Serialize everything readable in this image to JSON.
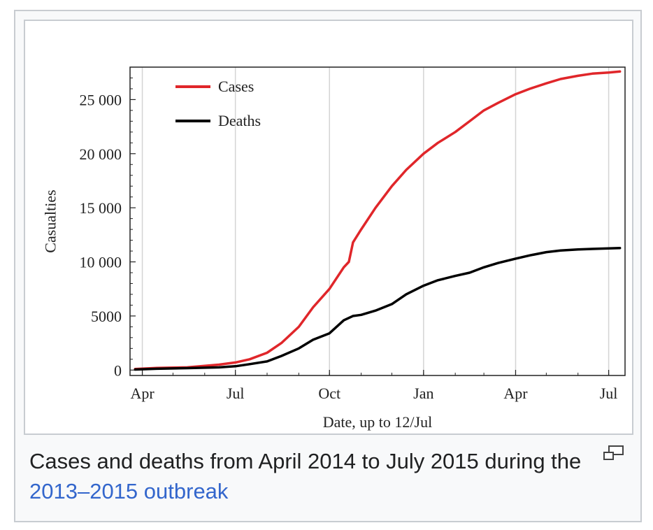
{
  "caption": {
    "text": "Cases and deaths from April 2014 to July 2015 during the ",
    "link": "2013–2015 outbreak"
  },
  "icons": {
    "enlarge": "magnify-clip-icon"
  },
  "chart_data": {
    "type": "line",
    "xlabel": "Date, up to 12/Jul",
    "ylabel": "Casualties",
    "xlim": [
      "2014-03-20",
      "2015-07-17"
    ],
    "ylim": [
      -500,
      28000
    ],
    "x_ticks": [
      {
        "date": "2014-04-01",
        "label": "Apr"
      },
      {
        "date": "2014-07-01",
        "label": "Jul"
      },
      {
        "date": "2014-10-01",
        "label": "Oct"
      },
      {
        "date": "2015-01-01",
        "label": "Jan"
      },
      {
        "date": "2015-04-01",
        "label": "Apr"
      },
      {
        "date": "2015-07-01",
        "label": "Jul"
      }
    ],
    "y_ticks": [
      {
        "value": 0,
        "label": "0"
      },
      {
        "value": 5000,
        "label": "5000"
      },
      {
        "value": 10000,
        "label": "10 000"
      },
      {
        "value": 15000,
        "label": "15 000"
      },
      {
        "value": 20000,
        "label": "20 000"
      },
      {
        "value": 25000,
        "label": "25 000"
      }
    ],
    "grid": "vertical",
    "legend_position": "top-left",
    "series": [
      {
        "name": "Cases",
        "color": "#e0262a",
        "points": [
          [
            "2014-03-25",
            100
          ],
          [
            "2014-04-15",
            200
          ],
          [
            "2014-05-15",
            250
          ],
          [
            "2014-06-15",
            500
          ],
          [
            "2014-07-01",
            700
          ],
          [
            "2014-07-15",
            1000
          ],
          [
            "2014-08-01",
            1600
          ],
          [
            "2014-08-15",
            2500
          ],
          [
            "2014-09-01",
            4000
          ],
          [
            "2014-09-15",
            5800
          ],
          [
            "2014-10-01",
            7500
          ],
          [
            "2014-10-15",
            9500
          ],
          [
            "2014-10-20",
            10000
          ],
          [
            "2014-10-24",
            11800
          ],
          [
            "2014-11-01",
            13000
          ],
          [
            "2014-11-15",
            15000
          ],
          [
            "2014-12-01",
            17000
          ],
          [
            "2014-12-15",
            18500
          ],
          [
            "2015-01-01",
            20000
          ],
          [
            "2015-01-15",
            21000
          ],
          [
            "2015-02-01",
            22000
          ],
          [
            "2015-02-15",
            23000
          ],
          [
            "2015-03-01",
            24000
          ],
          [
            "2015-03-15",
            24700
          ],
          [
            "2015-04-01",
            25500
          ],
          [
            "2015-04-15",
            26000
          ],
          [
            "2015-05-01",
            26500
          ],
          [
            "2015-05-15",
            26900
          ],
          [
            "2015-06-01",
            27200
          ],
          [
            "2015-06-15",
            27400
          ],
          [
            "2015-07-01",
            27500
          ],
          [
            "2015-07-12",
            27600
          ]
        ]
      },
      {
        "name": "Deaths",
        "color": "#000000",
        "points": [
          [
            "2014-03-25",
            50
          ],
          [
            "2014-04-15",
            120
          ],
          [
            "2014-05-15",
            180
          ],
          [
            "2014-06-15",
            250
          ],
          [
            "2014-07-01",
            350
          ],
          [
            "2014-07-15",
            550
          ],
          [
            "2014-08-01",
            800
          ],
          [
            "2014-08-15",
            1300
          ],
          [
            "2014-09-01",
            2000
          ],
          [
            "2014-09-15",
            2800
          ],
          [
            "2014-10-01",
            3400
          ],
          [
            "2014-10-15",
            4600
          ],
          [
            "2014-10-24",
            5000
          ],
          [
            "2014-11-01",
            5100
          ],
          [
            "2014-11-15",
            5500
          ],
          [
            "2014-12-01",
            6100
          ],
          [
            "2014-12-15",
            7000
          ],
          [
            "2015-01-01",
            7800
          ],
          [
            "2015-01-15",
            8300
          ],
          [
            "2015-02-01",
            8700
          ],
          [
            "2015-02-15",
            9000
          ],
          [
            "2015-03-01",
            9500
          ],
          [
            "2015-03-15",
            9900
          ],
          [
            "2015-04-01",
            10300
          ],
          [
            "2015-04-15",
            10600
          ],
          [
            "2015-05-01",
            10900
          ],
          [
            "2015-05-15",
            11050
          ],
          [
            "2015-06-01",
            11150
          ],
          [
            "2015-06-15",
            11200
          ],
          [
            "2015-07-01",
            11250
          ],
          [
            "2015-07-12",
            11280
          ]
        ]
      }
    ]
  }
}
